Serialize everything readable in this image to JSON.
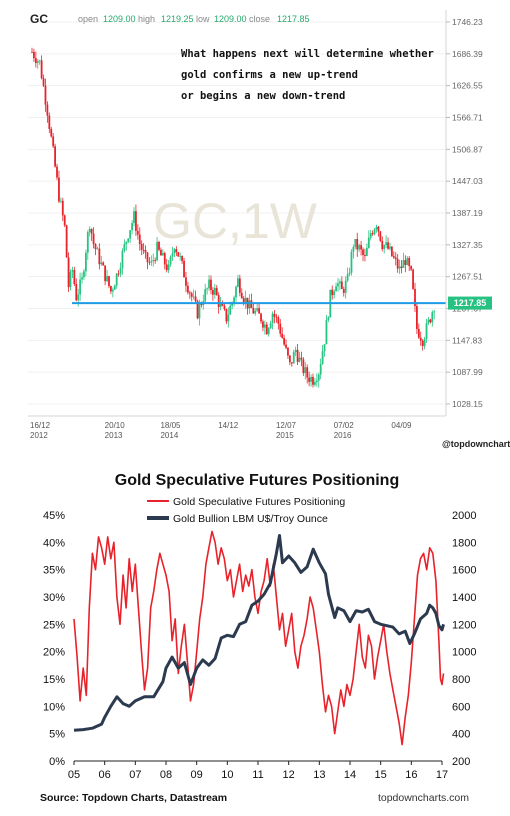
{
  "chart_data": [
    {
      "type": "candlestick",
      "symbol": "GC",
      "watermark": "GC,1W",
      "ohlc": {
        "open_label": "open",
        "open": "1209.00",
        "high_label": "high",
        "high": "1219.25",
        "low_label": "low",
        "low": "1209.00",
        "close_label": "close",
        "close": "1217.85"
      },
      "annotation": [
        "What happens next will determine whether",
        "gold confirms a new up-trend",
        "or begins a new down-trend"
      ],
      "y_ticks": [
        "1746.23",
        "1686.39",
        "1626.55",
        "1566.71",
        "1506.87",
        "1447.03",
        "1387.19",
        "1327.35",
        "1267.51",
        "1207.67",
        "1147.83",
        "1087.99",
        "1028.15"
      ],
      "ylim": [
        1028.15,
        1746.23
      ],
      "x_ticks": [
        {
          "label": "16/12",
          "sub": "2012",
          "t": 0
        },
        {
          "label": "20/10",
          "sub": "2013",
          "t": 44
        },
        {
          "label": "18/05",
          "sub": "2014",
          "t": 73
        },
        {
          "label": "14/12",
          "sub": "",
          "t": 103
        },
        {
          "label": "12/07",
          "sub": "2015",
          "t": 133
        },
        {
          "label": "07/02",
          "sub": "2016",
          "t": 163
        },
        {
          "label": "04/09",
          "sub": "",
          "t": 193
        }
      ],
      "current_price_label": "1217.85",
      "support_level": 1217.85,
      "credit": "@topdowncharts",
      "colors": {
        "up": "#26c281",
        "down": "#e8222a",
        "support": "#1f9be6",
        "price_badge": "#26c281"
      },
      "price_path": [
        [
          0,
          1690
        ],
        [
          4,
          1670
        ],
        [
          8,
          1580
        ],
        [
          11,
          1500
        ],
        [
          14,
          1420
        ],
        [
          17,
          1360
        ],
        [
          19,
          1250
        ],
        [
          21,
          1280
        ],
        [
          23,
          1230
        ],
        [
          26,
          1260
        ],
        [
          28,
          1320
        ],
        [
          30,
          1370
        ],
        [
          32,
          1330
        ],
        [
          35,
          1300
        ],
        [
          38,
          1270
        ],
        [
          41,
          1240
        ],
        [
          44,
          1270
        ],
        [
          47,
          1310
        ],
        [
          50,
          1350
        ],
        [
          53,
          1380
        ],
        [
          56,
          1330
        ],
        [
          59,
          1300
        ],
        [
          62,
          1290
        ],
        [
          65,
          1320
        ],
        [
          68,
          1300
        ],
        [
          71,
          1280
        ],
        [
          74,
          1330
        ],
        [
          77,
          1300
        ],
        [
          80,
          1260
        ],
        [
          83,
          1230
        ],
        [
          86,
          1200
        ],
        [
          89,
          1230
        ],
        [
          92,
          1250
        ],
        [
          95,
          1240
        ],
        [
          98,
          1210
        ],
        [
          101,
          1190
        ],
        [
          104,
          1220
        ],
        [
          107,
          1260
        ],
        [
          110,
          1230
        ],
        [
          113,
          1210
        ],
        [
          116,
          1200
        ],
        [
          119,
          1190
        ],
        [
          122,
          1170
        ],
        [
          125,
          1200
        ],
        [
          128,
          1180
        ],
        [
          131,
          1140
        ],
        [
          134,
          1100
        ],
        [
          137,
          1130
        ],
        [
          140,
          1100
        ],
        [
          143,
          1080
        ],
        [
          146,
          1075
        ],
        [
          149,
          1090
        ],
        [
          152,
          1150
        ],
        [
          155,
          1230
        ],
        [
          158,
          1260
        ],
        [
          161,
          1240
        ],
        [
          164,
          1260
        ],
        [
          167,
          1330
        ],
        [
          170,
          1320
        ],
        [
          173,
          1300
        ],
        [
          176,
          1350
        ],
        [
          179,
          1370
        ],
        [
          182,
          1330
        ],
        [
          185,
          1320
        ],
        [
          188,
          1300
        ],
        [
          191,
          1280
        ],
        [
          194,
          1300
        ],
        [
          197,
          1270
        ],
        [
          200,
          1170
        ],
        [
          203,
          1150
        ],
        [
          206,
          1180
        ],
        [
          209,
          1215
        ]
      ]
    },
    {
      "type": "line",
      "title": "Gold Speculative Futures Positioning",
      "source": "Source: Topdown Charts, Datastream",
      "site": "topdowncharts.com",
      "x_ticks": [
        "05",
        "06",
        "07",
        "08",
        "09",
        "10",
        "11",
        "12",
        "13",
        "14",
        "15",
        "16",
        "17"
      ],
      "xlim": [
        2005,
        2017
      ],
      "left_axis": {
        "ticks": [
          "0%",
          "5%",
          "10%",
          "15%",
          "20%",
          "25%",
          "30%",
          "35%",
          "40%",
          "45%"
        ],
        "ylim": [
          0,
          45
        ]
      },
      "right_axis": {
        "ticks": [
          "200",
          "400",
          "600",
          "800",
          "1000",
          "1200",
          "1400",
          "1600",
          "1800",
          "2000"
        ],
        "ylim": [
          200,
          2000
        ]
      },
      "legend_position": "top",
      "series": [
        {
          "name": "Gold Speculative Futures Positioning",
          "axis": "left",
          "color": "#e8222a",
          "points": [
            [
              2005.0,
              26
            ],
            [
              2005.1,
              19
            ],
            [
              2005.2,
              11
            ],
            [
              2005.3,
              17
            ],
            [
              2005.4,
              12
            ],
            [
              2005.5,
              28
            ],
            [
              2005.6,
              38
            ],
            [
              2005.7,
              35
            ],
            [
              2005.8,
              41
            ],
            [
              2005.9,
              39
            ],
            [
              2006.0,
              36
            ],
            [
              2006.1,
              41
            ],
            [
              2006.2,
              37
            ],
            [
              2006.3,
              40
            ],
            [
              2006.4,
              30
            ],
            [
              2006.5,
              25
            ],
            [
              2006.6,
              34
            ],
            [
              2006.7,
              28
            ],
            [
              2006.8,
              37
            ],
            [
              2006.9,
              31
            ],
            [
              2007.0,
              36
            ],
            [
              2007.1,
              28
            ],
            [
              2007.2,
              20
            ],
            [
              2007.3,
              13
            ],
            [
              2007.4,
              17
            ],
            [
              2007.5,
              28
            ],
            [
              2007.6,
              31
            ],
            [
              2007.7,
              35
            ],
            [
              2007.8,
              38
            ],
            [
              2007.9,
              36
            ],
            [
              2008.0,
              34
            ],
            [
              2008.1,
              31
            ],
            [
              2008.2,
              22
            ],
            [
              2008.3,
              26
            ],
            [
              2008.4,
              16
            ],
            [
              2008.5,
              21
            ],
            [
              2008.6,
              25
            ],
            [
              2008.7,
              18
            ],
            [
              2008.8,
              11
            ],
            [
              2008.9,
              14
            ],
            [
              2009.0,
              20
            ],
            [
              2009.1,
              26
            ],
            [
              2009.2,
              30
            ],
            [
              2009.3,
              36
            ],
            [
              2009.4,
              39
            ],
            [
              2009.5,
              42
            ],
            [
              2009.6,
              40
            ],
            [
              2009.7,
              36
            ],
            [
              2009.8,
              39
            ],
            [
              2009.9,
              37
            ],
            [
              2010.0,
              33
            ],
            [
              2010.1,
              35
            ],
            [
              2010.2,
              30
            ],
            [
              2010.3,
              33
            ],
            [
              2010.4,
              36
            ],
            [
              2010.5,
              31
            ],
            [
              2010.6,
              34
            ],
            [
              2010.7,
              32
            ],
            [
              2010.8,
              35
            ],
            [
              2010.9,
              30
            ],
            [
              2011.0,
              27
            ],
            [
              2011.1,
              31
            ],
            [
              2011.2,
              33
            ],
            [
              2011.3,
              37
            ],
            [
              2011.4,
              32
            ],
            [
              2011.5,
              36
            ],
            [
              2011.6,
              30
            ],
            [
              2011.7,
              24
            ],
            [
              2011.8,
              27
            ],
            [
              2011.9,
              21
            ],
            [
              2012.0,
              24
            ],
            [
              2012.1,
              27
            ],
            [
              2012.2,
              20
            ],
            [
              2012.3,
              17
            ],
            [
              2012.4,
              21
            ],
            [
              2012.5,
              23
            ],
            [
              2012.6,
              26
            ],
            [
              2012.7,
              30
            ],
            [
              2012.8,
              28
            ],
            [
              2012.9,
              24
            ],
            [
              2013.0,
              20
            ],
            [
              2013.1,
              14
            ],
            [
              2013.2,
              9
            ],
            [
              2013.3,
              12
            ],
            [
              2013.4,
              10
            ],
            [
              2013.5,
              5
            ],
            [
              2013.6,
              9
            ],
            [
              2013.7,
              13
            ],
            [
              2013.8,
              10
            ],
            [
              2013.9,
              14
            ],
            [
              2014.0,
              12
            ],
            [
              2014.1,
              15
            ],
            [
              2014.2,
              20
            ],
            [
              2014.3,
              25
            ],
            [
              2014.4,
              19
            ],
            [
              2014.5,
              17
            ],
            [
              2014.6,
              23
            ],
            [
              2014.7,
              21
            ],
            [
              2014.8,
              15
            ],
            [
              2014.9,
              19
            ],
            [
              2015.0,
              22
            ],
            [
              2015.1,
              25
            ],
            [
              2015.2,
              20
            ],
            [
              2015.3,
              16
            ],
            [
              2015.4,
              13
            ],
            [
              2015.5,
              10
            ],
            [
              2015.6,
              7
            ],
            [
              2015.7,
              3
            ],
            [
              2015.8,
              8
            ],
            [
              2015.9,
              12
            ],
            [
              2016.0,
              18
            ],
            [
              2016.1,
              26
            ],
            [
              2016.2,
              34
            ],
            [
              2016.3,
              37
            ],
            [
              2016.4,
              38
            ],
            [
              2016.5,
              35
            ],
            [
              2016.6,
              39
            ],
            [
              2016.7,
              38
            ],
            [
              2016.8,
              33
            ],
            [
              2016.9,
              22
            ],
            [
              2016.95,
              15
            ],
            [
              2017.0,
              14
            ],
            [
              2017.05,
              16
            ]
          ]
        },
        {
          "name": "Gold Bullion LBM U$/Troy Ounce",
          "axis": "right",
          "color": "#2b3a4e",
          "points": [
            [
              2005.0,
              425
            ],
            [
              2005.3,
              430
            ],
            [
              2005.6,
              440
            ],
            [
              2005.9,
              470
            ],
            [
              2006.0,
              520
            ],
            [
              2006.2,
              600
            ],
            [
              2006.4,
              670
            ],
            [
              2006.6,
              620
            ],
            [
              2006.8,
              600
            ],
            [
              2007.0,
              640
            ],
            [
              2007.3,
              670
            ],
            [
              2007.6,
              670
            ],
            [
              2007.9,
              780
            ],
            [
              2008.0,
              880
            ],
            [
              2008.2,
              960
            ],
            [
              2008.4,
              880
            ],
            [
              2008.6,
              920
            ],
            [
              2008.8,
              760
            ],
            [
              2009.0,
              880
            ],
            [
              2009.2,
              940
            ],
            [
              2009.4,
              900
            ],
            [
              2009.6,
              950
            ],
            [
              2009.8,
              1100
            ],
            [
              2010.0,
              1120
            ],
            [
              2010.2,
              1110
            ],
            [
              2010.4,
              1200
            ],
            [
              2010.6,
              1220
            ],
            [
              2010.8,
              1340
            ],
            [
              2011.0,
              1370
            ],
            [
              2011.2,
              1420
            ],
            [
              2011.4,
              1500
            ],
            [
              2011.6,
              1720
            ],
            [
              2011.7,
              1850
            ],
            [
              2011.8,
              1650
            ],
            [
              2012.0,
              1700
            ],
            [
              2012.2,
              1650
            ],
            [
              2012.4,
              1580
            ],
            [
              2012.6,
              1620
            ],
            [
              2012.8,
              1750
            ],
            [
              2013.0,
              1650
            ],
            [
              2013.2,
              1570
            ],
            [
              2013.3,
              1420
            ],
            [
              2013.5,
              1250
            ],
            [
              2013.6,
              1320
            ],
            [
              2013.8,
              1300
            ],
            [
              2014.0,
              1220
            ],
            [
              2014.2,
              1300
            ],
            [
              2014.4,
              1290
            ],
            [
              2014.6,
              1310
            ],
            [
              2014.8,
              1220
            ],
            [
              2015.0,
              1200
            ],
            [
              2015.2,
              1190
            ],
            [
              2015.4,
              1180
            ],
            [
              2015.6,
              1130
            ],
            [
              2015.8,
              1150
            ],
            [
              2015.95,
              1060
            ],
            [
              2016.1,
              1130
            ],
            [
              2016.3,
              1240
            ],
            [
              2016.5,
              1280
            ],
            [
              2016.6,
              1340
            ],
            [
              2016.7,
              1320
            ],
            [
              2016.8,
              1280
            ],
            [
              2016.9,
              1190
            ],
            [
              2017.0,
              1160
            ],
            [
              2017.05,
              1200
            ]
          ]
        }
      ]
    }
  ]
}
